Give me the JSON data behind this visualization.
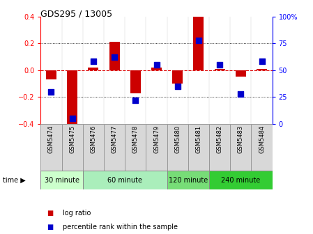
{
  "title": "GDS295 / 13005",
  "samples": [
    "GSM5474",
    "GSM5475",
    "GSM5476",
    "GSM5477",
    "GSM5478",
    "GSM5479",
    "GSM5480",
    "GSM5481",
    "GSM5482",
    "GSM5483",
    "GSM5484"
  ],
  "log_ratio": [
    -0.07,
    -0.41,
    0.02,
    0.21,
    -0.17,
    0.02,
    -0.1,
    0.4,
    0.01,
    -0.05,
    0.01
  ],
  "percentile": [
    30,
    5,
    58,
    62,
    22,
    55,
    35,
    78,
    55,
    28,
    58
  ],
  "groups": [
    {
      "label": "30 minute",
      "start": 0,
      "end": 2,
      "color": "#ccffcc"
    },
    {
      "label": "60 minute",
      "start": 2,
      "end": 6,
      "color": "#aaeebb"
    },
    {
      "label": "120 minute",
      "start": 6,
      "end": 8,
      "color": "#77dd77"
    },
    {
      "label": "240 minute",
      "start": 8,
      "end": 11,
      "color": "#33cc33"
    }
  ],
  "ylim_left": [
    -0.4,
    0.4
  ],
  "ylim_right": [
    0,
    100
  ],
  "yticks_left": [
    -0.4,
    -0.2,
    0.0,
    0.2,
    0.4
  ],
  "yticks_right": [
    0,
    25,
    50,
    75,
    100
  ],
  "bar_color": "#cc0000",
  "dot_color": "#0000cc",
  "zero_line_color": "#dd0000",
  "grid_color": "#000000",
  "bg_color": "#ffffff",
  "plot_bg_color": "#ffffff",
  "label_box_color": "#d8d8d8",
  "legend_log_ratio": "log ratio",
  "legend_percentile": "percentile rank within the sample",
  "bar_width": 0.5
}
